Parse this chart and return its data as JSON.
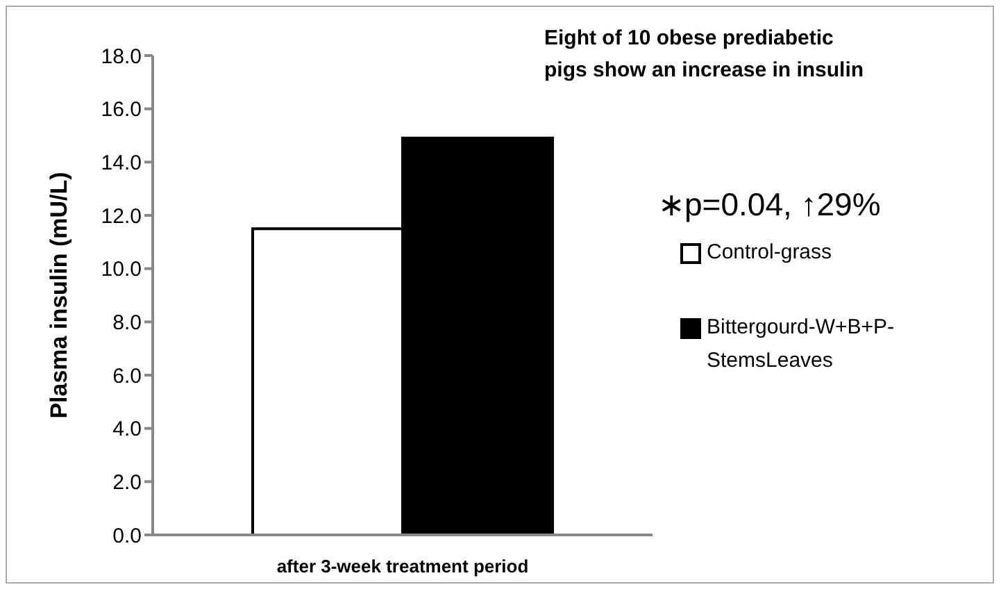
{
  "chart_data": {
    "type": "bar",
    "title": "Eight of 10 obese prediabetic pigs show an increase in insulin",
    "ylabel": "Plasma insulin (mU/L)",
    "categories": [
      "after 3-week treatment period"
    ],
    "series": [
      {
        "name": "Control-grass",
        "color": "#ffffff",
        "values": [
          11.5
        ]
      },
      {
        "name": "Bittergourd-W+B+P-StemsLeaves",
        "color": "#000000",
        "values": [
          14.9
        ]
      }
    ],
    "ylim": [
      0,
      18
    ],
    "yticks": [
      {
        "value": 0,
        "label": "0.0"
      },
      {
        "value": 2,
        "label": "2.0"
      },
      {
        "value": 4,
        "label": "4.0"
      },
      {
        "value": 6,
        "label": "6.0"
      },
      {
        "value": 8,
        "label": "8.0"
      },
      {
        "value": 10,
        "label": "10.0"
      },
      {
        "value": 12,
        "label": "12.0"
      },
      {
        "value": 14,
        "label": "14.0"
      },
      {
        "value": 16,
        "label": "16.0"
      },
      {
        "value": 18,
        "label": "18.0"
      }
    ],
    "annotations": [
      "∗p=0.04, ↑29%"
    ],
    "grid": false,
    "legend": "right"
  }
}
